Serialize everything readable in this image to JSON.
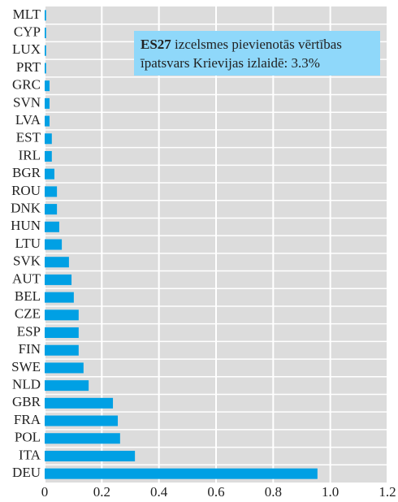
{
  "chart_data": {
    "type": "hbar",
    "categories": [
      "MLT",
      "CYP",
      "LUX",
      "PRT",
      "GRC",
      "SVN",
      "LVA",
      "EST",
      "IRL",
      "BGR",
      "ROU",
      "DNK",
      "HUN",
      "LTU",
      "SVK",
      "AUT",
      "BEL",
      "CZE",
      "ESP",
      "FIN",
      "SWE",
      "NLD",
      "GBR",
      "FRA",
      "POL",
      "ITA",
      "DEU"
    ],
    "values": [
      0.005,
      0.005,
      0.005,
      0.005,
      0.017,
      0.017,
      0.017,
      0.025,
      0.025,
      0.034,
      0.043,
      0.043,
      0.051,
      0.06,
      0.085,
      0.094,
      0.102,
      0.119,
      0.119,
      0.119,
      0.136,
      0.154,
      0.239,
      0.256,
      0.264,
      0.316,
      0.955
    ],
    "color": "#00a0e4",
    "xlim": [
      0,
      1.2
    ],
    "xticks": [
      0,
      0.2,
      0.4,
      0.6,
      0.8,
      {
        "value": 1,
        "label": "1.0"
      },
      1.2
    ],
    "grid": true,
    "annotation": {
      "bold": "ES27",
      "line1": " izcelsmes pievienotās vērtības",
      "line2": "īpatsvars Krievijas izlaidē: 3.3%"
    }
  }
}
